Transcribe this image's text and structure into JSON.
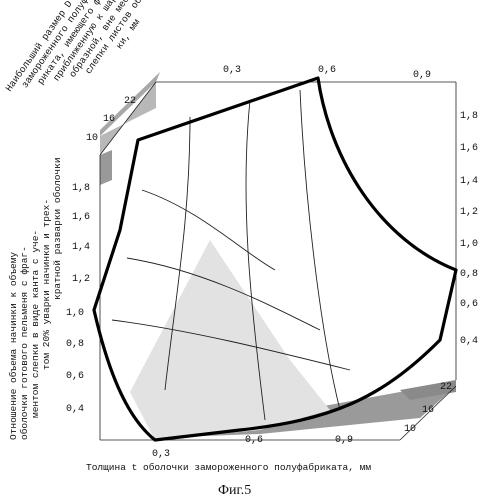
{
  "figure": {
    "caption": "Фиг.5",
    "back_axis_label_lines": [
      "Наибольший размер D",
      "замороженного полуфаб-",
      "риката, имеющего форму,",
      "приближенную к шаро-",
      "образной, вне мест",
      "слепки листов оболоч-",
      "ки, мм"
    ],
    "left_axis_label_lines": [
      "Отношение объема начинки к объему",
      "оболочки готового пельменя с фраг-",
      "ментом слепки в виде канта с уче-",
      "том 20% уварки начинки и трех-",
      "кратной разварки оболочки"
    ],
    "bottom_axis_label": "Толщина t оболочки замороженного полуфабриката, мм"
  },
  "chart_data": {
    "type": "surface-3d",
    "x_axis": {
      "label": "Толщина t оболочки замороженного полуфабриката, мм",
      "ticks": [
        "0,3",
        "0,6",
        "0,9"
      ]
    },
    "top_x_ticks": [
      "0,3",
      "0,6",
      "0,9"
    ],
    "d_axis": {
      "label": "Наибольший размер D замороженного полуфабриката, имеющего форму, приближенную к шарообразной, вне мест слепки листов оболочки, мм",
      "ticks": [
        "10",
        "16",
        "22"
      ]
    },
    "front_d_ticks": [
      "10",
      "16",
      "22"
    ],
    "z_axis_left_ticks": [
      "0,4",
      "0,6",
      "0,8",
      "1,0",
      "1,2",
      "1,4",
      "1,6",
      "1,8"
    ],
    "z_axis_right_ticks": [
      "0,4",
      "0,6",
      "0,8",
      "1,0",
      "1,2",
      "1,4",
      "1,6",
      "1,8"
    ],
    "corners": [
      {
        "t": 0.3,
        "D": 10,
        "ratio": 1.8
      },
      {
        "t": 0.6,
        "D": 22,
        "ratio": 1.9
      },
      {
        "t": 0.9,
        "D": 22,
        "ratio": 0.8
      },
      {
        "t": 0.9,
        "D": 10,
        "ratio": 0.25
      },
      {
        "t": 0.3,
        "D": 22,
        "ratio": 1.0
      }
    ]
  }
}
